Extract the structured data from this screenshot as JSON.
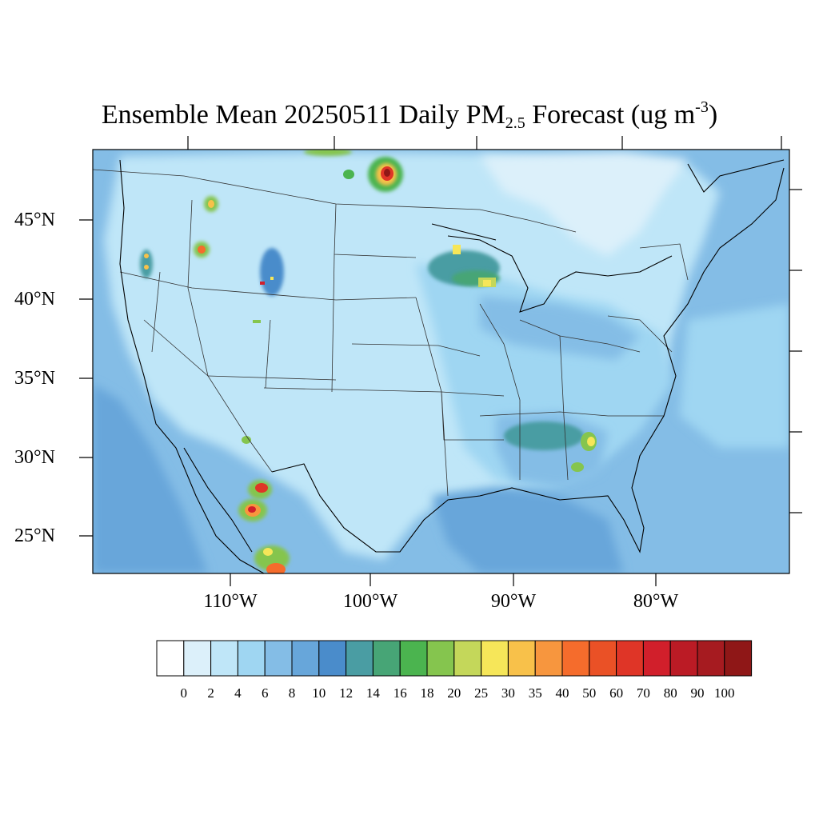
{
  "title": {
    "prefix": "Ensemble Mean 20250511 Daily PM",
    "sub": "2.5",
    "suffix": " Forecast (ug m",
    "sup": "-3",
    "end": ")"
  },
  "map": {
    "lat_labels": [
      "45°N",
      "40°N",
      "35°N",
      "30°N",
      "25°N"
    ],
    "lon_labels": [
      "110°W",
      "100°W",
      "90°W",
      "80°W"
    ]
  },
  "colorbar": {
    "levels": [
      "0",
      "2",
      "4",
      "6",
      "8",
      "10",
      "12",
      "14",
      "16",
      "18",
      "20",
      "25",
      "30",
      "35",
      "40",
      "50",
      "60",
      "70",
      "80",
      "90",
      "100"
    ],
    "colors": [
      "#ffffff",
      "#dcf0fa",
      "#bfe6f8",
      "#9fd6f2",
      "#84bde6",
      "#67a6da",
      "#4a8ccb",
      "#4a9da3",
      "#47a576",
      "#4bb44f",
      "#85c54e",
      "#c4d75a",
      "#f6e659",
      "#f8c14a",
      "#f7963e",
      "#f56c2c",
      "#ea5126",
      "#df3527",
      "#d11f2b",
      "#bb1b25",
      "#a61b20",
      "#8f1717"
    ]
  }
}
